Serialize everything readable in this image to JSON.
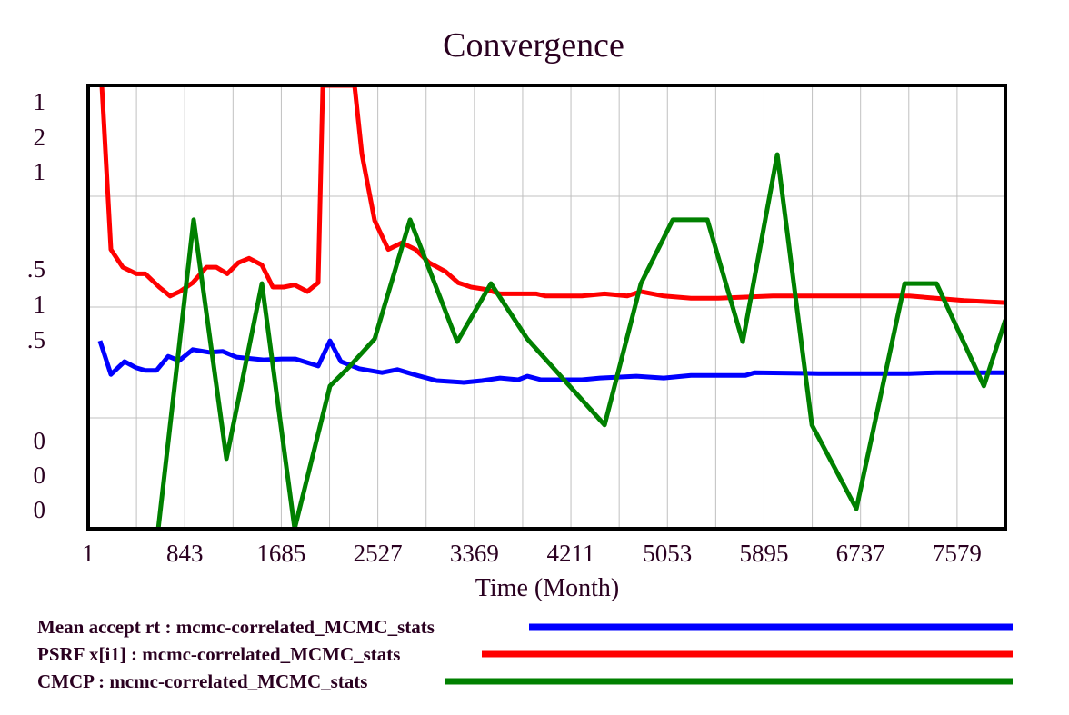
{
  "chart_data": {
    "type": "line",
    "title": "Convergence",
    "xlabel": "Time (Month)",
    "xlim": [
      1,
      8000
    ],
    "x_ticks": [
      "1",
      "843",
      "1685",
      "2527",
      "3369",
      "4211",
      "5053",
      "5895",
      "6737",
      "7579"
    ],
    "x_tick_values": [
      1,
      843,
      1685,
      2527,
      3369,
      4211,
      5053,
      5895,
      6737,
      7579
    ],
    "y_tick_rows": [
      {
        "labels": [
          "1",
          "2",
          "1"
        ]
      },
      {
        "labels": [
          ".5",
          "1",
          ".5"
        ]
      },
      {
        "labels": [
          "0",
          "0",
          "0"
        ]
      }
    ],
    "grid": true,
    "legend_position": "bottom",
    "series": [
      {
        "name": "Mean accept rt : mcmc-correlated_MCMC_stats",
        "color": "#0000ff",
        "ylim": [
          0,
          1
        ],
        "points": [
          [
            104,
            0.424
          ],
          [
            199,
            0.348
          ],
          [
            318,
            0.377
          ],
          [
            421,
            0.363
          ],
          [
            500,
            0.357
          ],
          [
            596,
            0.357
          ],
          [
            699,
            0.389
          ],
          [
            794,
            0.379
          ],
          [
            913,
            0.404
          ],
          [
            1056,
            0.398
          ],
          [
            1175,
            0.4
          ],
          [
            1294,
            0.387
          ],
          [
            1531,
            0.381
          ],
          [
            1690,
            0.383
          ],
          [
            1809,
            0.383
          ],
          [
            2007,
            0.367
          ],
          [
            2110,
            0.424
          ],
          [
            2205,
            0.377
          ],
          [
            2364,
            0.361
          ],
          [
            2563,
            0.352
          ],
          [
            2697,
            0.359
          ],
          [
            2840,
            0.348
          ],
          [
            3039,
            0.334
          ],
          [
            3276,
            0.33
          ],
          [
            3435,
            0.334
          ],
          [
            3593,
            0.34
          ],
          [
            3752,
            0.336
          ],
          [
            3831,
            0.344
          ],
          [
            3950,
            0.336
          ],
          [
            4307,
            0.336
          ],
          [
            4465,
            0.34
          ],
          [
            4782,
            0.344
          ],
          [
            5021,
            0.34
          ],
          [
            5259,
            0.346
          ],
          [
            5734,
            0.346
          ],
          [
            5814,
            0.352
          ],
          [
            6369,
            0.35
          ],
          [
            7162,
            0.35
          ],
          [
            7400,
            0.352
          ],
          [
            8000,
            0.352
          ]
        ]
      },
      {
        "name": "PSRF x[i1] : mcmc-correlated_MCMC_stats",
        "color": "#ff0000",
        "ylim": [
          0,
          2
        ],
        "points": [
          [
            120,
            2.0
          ],
          [
            199,
            1.26
          ],
          [
            302,
            1.18
          ],
          [
            421,
            1.15
          ],
          [
            500,
            1.15
          ],
          [
            620,
            1.09
          ],
          [
            715,
            1.05
          ],
          [
            800,
            1.07
          ],
          [
            913,
            1.11
          ],
          [
            1032,
            1.18
          ],
          [
            1119,
            1.18
          ],
          [
            1214,
            1.15
          ],
          [
            1310,
            1.2
          ],
          [
            1404,
            1.22
          ],
          [
            1515,
            1.19
          ],
          [
            1611,
            1.09
          ],
          [
            1706,
            1.09
          ],
          [
            1801,
            1.1
          ],
          [
            1912,
            1.07
          ],
          [
            2007,
            1.11
          ],
          [
            2047,
            2.0
          ],
          [
            2324,
            2.0
          ],
          [
            2388,
            1.69
          ],
          [
            2499,
            1.39
          ],
          [
            2618,
            1.26
          ],
          [
            2737,
            1.29
          ],
          [
            2856,
            1.26
          ],
          [
            2975,
            1.2
          ],
          [
            3118,
            1.16
          ],
          [
            3228,
            1.11
          ],
          [
            3340,
            1.09
          ],
          [
            3466,
            1.08
          ],
          [
            3593,
            1.06
          ],
          [
            3910,
            1.06
          ],
          [
            3990,
            1.05
          ],
          [
            4307,
            1.05
          ],
          [
            4505,
            1.06
          ],
          [
            4703,
            1.05
          ],
          [
            4822,
            1.07
          ],
          [
            5021,
            1.05
          ],
          [
            5259,
            1.04
          ],
          [
            5496,
            1.04
          ],
          [
            5972,
            1.05
          ],
          [
            6765,
            1.05
          ],
          [
            7162,
            1.05
          ],
          [
            7638,
            1.03
          ],
          [
            8000,
            1.02
          ]
        ]
      },
      {
        "name": "CMCP : mcmc-correlated_MCMC_stats",
        "color": "#008000",
        "ylim": [
          0,
          1
        ],
        "points": [
          [
            560,
            -0.04
          ],
          [
            612,
            0.0
          ],
          [
            921,
            0.697
          ],
          [
            1207,
            0.158
          ],
          [
            1516,
            0.553
          ],
          [
            1801,
            0.0
          ],
          [
            2110,
            0.322
          ],
          [
            2269,
            0.363
          ],
          [
            2499,
            0.428
          ],
          [
            2808,
            0.697
          ],
          [
            3220,
            0.422
          ],
          [
            3514,
            0.553
          ],
          [
            3831,
            0.428
          ],
          [
            4505,
            0.234
          ],
          [
            4822,
            0.553
          ],
          [
            5100,
            0.697
          ],
          [
            5401,
            0.697
          ],
          [
            5710,
            0.422
          ],
          [
            6011,
            0.844
          ],
          [
            6313,
            0.234
          ],
          [
            6701,
            0.045
          ],
          [
            7122,
            0.553
          ],
          [
            7400,
            0.553
          ],
          [
            7813,
            0.322
          ],
          [
            8000,
            0.471
          ]
        ]
      }
    ]
  }
}
